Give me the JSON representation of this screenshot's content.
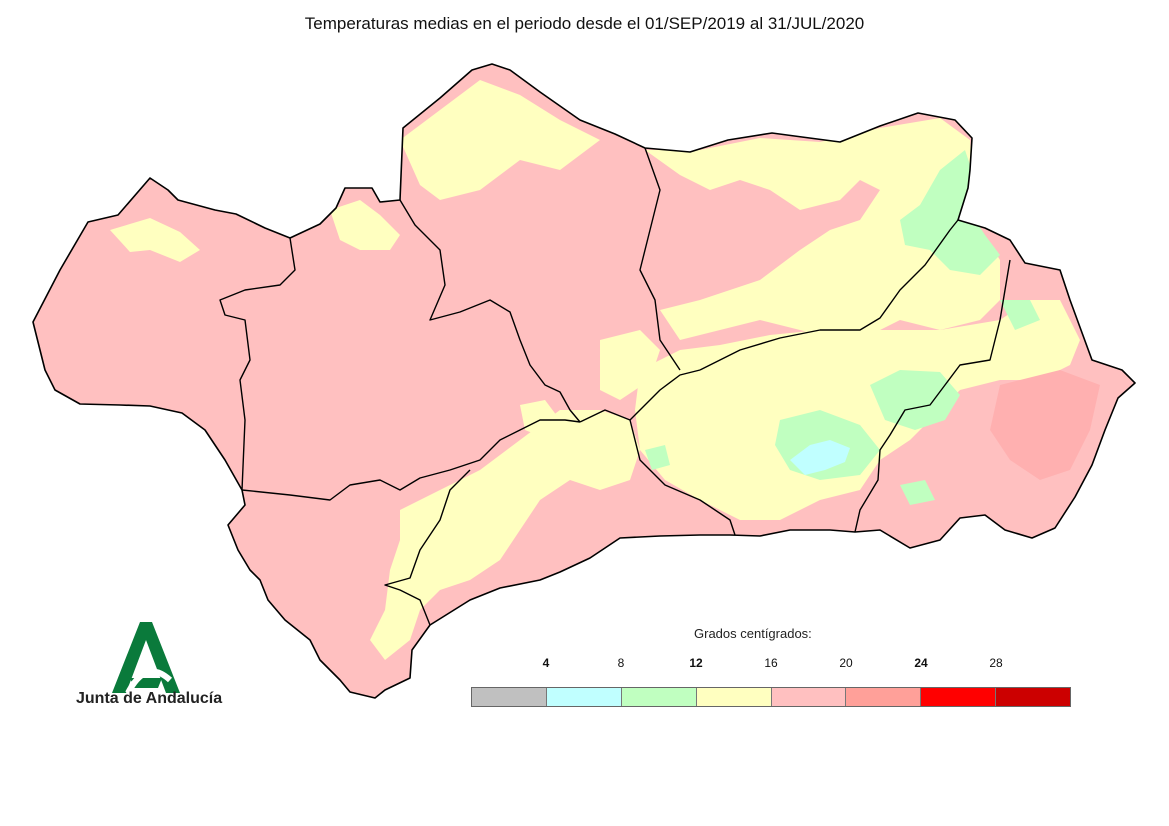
{
  "title": "Temperaturas medias en el periodo desde el 01/SEP/2019 al 31/JUL/2020",
  "logo": {
    "text": "Junta de Andalucía",
    "color": "#0a7a3b"
  },
  "legend": {
    "title": "Grados centígrados:",
    "ticks": [
      {
        "label": "4",
        "bold": true
      },
      {
        "label": "8",
        "bold": false
      },
      {
        "label": "12",
        "bold": true
      },
      {
        "label": "16",
        "bold": false
      },
      {
        "label": "20",
        "bold": false
      },
      {
        "label": "24",
        "bold": true
      },
      {
        "label": "28",
        "bold": false
      }
    ],
    "colors": [
      "#c0c0c0",
      "#c0ffff",
      "#c0ffc0",
      "#ffffc0",
      "#ffc0c0",
      "#ffa099",
      "#ff0000",
      "#cc0000"
    ]
  },
  "map": {
    "dominant_color": "#ffc0c0",
    "border_color": "#000000"
  }
}
